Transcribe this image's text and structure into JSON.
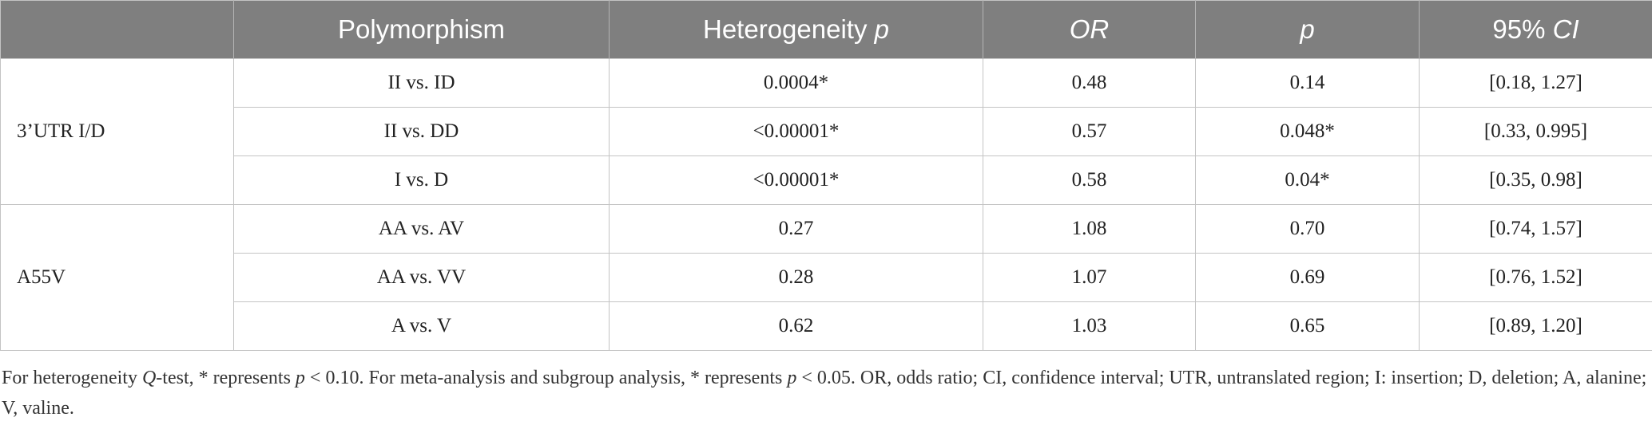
{
  "table": {
    "headers": [
      {
        "label": "Polymorphism",
        "italic": false
      },
      {
        "label": "Heterogeneity ",
        "italic_suffix": "p"
      },
      {
        "label": "OR",
        "italic": true
      },
      {
        "label": "p",
        "italic": true
      },
      {
        "label": "95% ",
        "italic_suffix": "CI"
      }
    ],
    "groups": [
      {
        "name": "3’UTR I/D",
        "rows": [
          {
            "comparison": "II vs. ID",
            "heterogeneity_p": "0.0004*",
            "or": "0.48",
            "p": "0.14",
            "ci": "[0.18, 1.27]"
          },
          {
            "comparison": "II vs. DD",
            "heterogeneity_p": "<0.00001*",
            "or": "0.57",
            "p": "0.048*",
            "ci": "[0.33, 0.995]"
          },
          {
            "comparison": "I vs. D",
            "heterogeneity_p": "<0.00001*",
            "or": "0.58",
            "p": "0.04*",
            "ci": "[0.35, 0.98]"
          }
        ]
      },
      {
        "name": "A55V",
        "rows": [
          {
            "comparison": "AA vs. AV",
            "heterogeneity_p": "0.27",
            "or": "1.08",
            "p": "0.70",
            "ci": "[0.74, 1.57]"
          },
          {
            "comparison": "AA vs. VV",
            "heterogeneity_p": "0.28",
            "or": "1.07",
            "p": "0.69",
            "ci": "[0.76, 1.52]"
          },
          {
            "comparison": "A vs. V",
            "heterogeneity_p": "0.62",
            "or": "1.03",
            "p": "0.65",
            "ci": "[0.89, 1.20]"
          }
        ]
      }
    ]
  },
  "footnote": {
    "parts": [
      {
        "text": "For heterogeneity ",
        "italic": false
      },
      {
        "text": "Q",
        "italic": true
      },
      {
        "text": "-test, * represents ",
        "italic": false
      },
      {
        "text": "p",
        "italic": true
      },
      {
        "text": " < 0.10. For meta-analysis and subgroup analysis, * represents ",
        "italic": false
      },
      {
        "text": "p",
        "italic": true
      },
      {
        "text": " < 0.05. OR, odds ratio; CI, confidence interval; UTR, untranslated region; I: insertion; D, deletion; A, alanine; V, valine.",
        "italic": false
      }
    ]
  },
  "colors": {
    "header_bg": "#7f7f7f",
    "header_text": "#ffffff",
    "grid": "#c4c4c4"
  }
}
